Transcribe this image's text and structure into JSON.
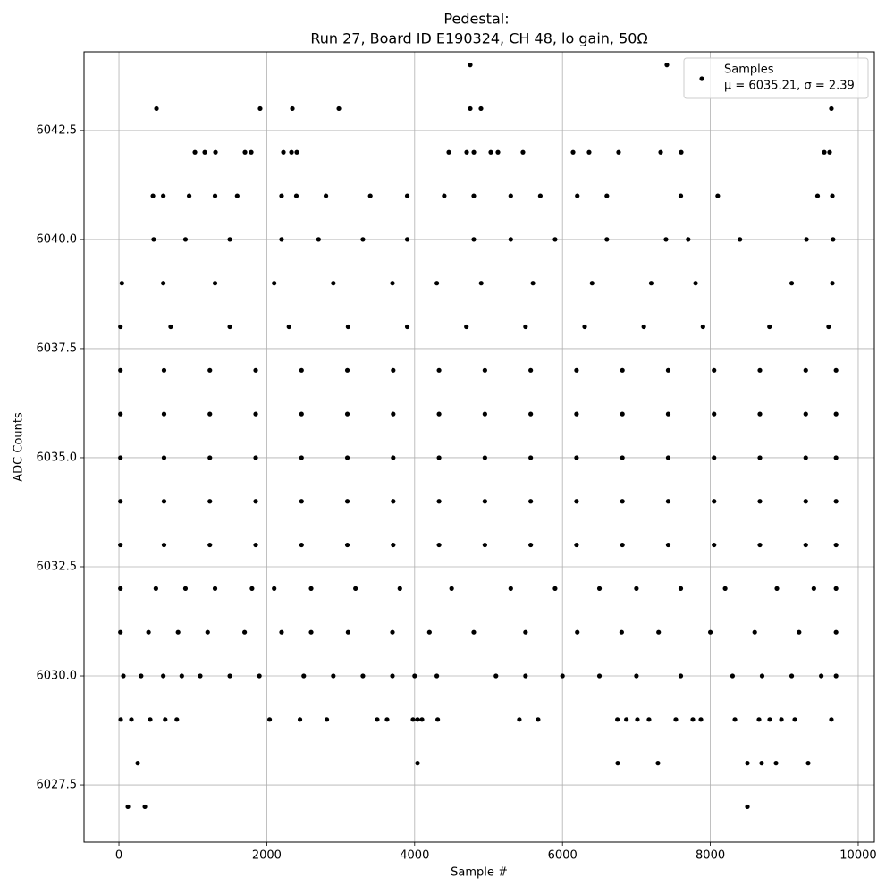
{
  "chart_data": {
    "type": "scatter",
    "title": "Pedestal:",
    "subtitle": "Run 27, Board ID E190324, CH 48, lo gain, 50Ω",
    "x_label": "Sample #",
    "y_label": "ADC Counts",
    "legend_note": "μ = 6035.21, σ = 2.39",
    "legend": "upper right",
    "grid": true,
    "xlim": [
      -472,
      10218
    ],
    "ylim": [
      6026.19,
      6044.3
    ],
    "xticks": [
      0,
      2000,
      4000,
      6000,
      8000,
      10000
    ],
    "yticks": [
      6027.5,
      {
        "value": 6030,
        "label": "6030.0"
      },
      6032.5,
      {
        "value": 6035,
        "label": "6035.0"
      },
      6037.5,
      {
        "value": 6040,
        "label": "6040.0"
      },
      6042.5
    ],
    "series": [
      {
        "name": "Samples",
        "color": "#000000",
        "x": [
          4752,
          7412,
          508,
          1910,
          2346,
          2975,
          4752,
          4897,
          9637,
          1028,
          1161,
          1306,
          1705,
          1790,
          2225,
          2334,
          2406,
          4462,
          4704,
          4801,
          5030,
          5127,
          5465,
          6143,
          6360,
          6759,
          7328,
          7606,
          9541,
          9613,
          460,
          600,
          950,
          1300,
          1600,
          2200,
          2400,
          2800,
          3400,
          3900,
          4400,
          4800,
          5300,
          5700,
          6200,
          6600,
          7600,
          8100,
          9450,
          9650,
          470,
          900,
          1500,
          2200,
          2700,
          3300,
          3900,
          4800,
          5300,
          5900,
          6600,
          7400,
          7700,
          8400,
          9300,
          9660,
          40,
          600,
          1300,
          2100,
          2900,
          3700,
          4300,
          4900,
          5600,
          6400,
          7200,
          7800,
          9100,
          9650,
          20,
          700,
          1500,
          2300,
          3100,
          3900,
          4700,
          5500,
          6300,
          7100,
          7900,
          8800,
          9600,
          20,
          610,
          1230,
          1850,
          2470,
          3090,
          3710,
          4330,
          4950,
          5570,
          6190,
          6810,
          7430,
          8050,
          8670,
          9290,
          9700,
          20,
          610,
          1230,
          1850,
          2470,
          3090,
          3710,
          4330,
          4950,
          5570,
          6190,
          6810,
          7430,
          8050,
          8670,
          9290,
          9700,
          20,
          610,
          1230,
          1850,
          2470,
          3090,
          3710,
          4330,
          4950,
          5570,
          6190,
          6810,
          7430,
          8050,
          8670,
          9290,
          9700,
          20,
          610,
          1230,
          1850,
          2470,
          3090,
          3710,
          4330,
          4950,
          5570,
          6190,
          6810,
          7430,
          8050,
          8670,
          9290,
          9700,
          20,
          610,
          1230,
          1850,
          2470,
          3090,
          3710,
          4330,
          4950,
          5570,
          6190,
          6810,
          7430,
          8050,
          8670,
          9290,
          9700,
          20,
          500,
          900,
          1300,
          1800,
          2100,
          2600,
          3200,
          3800,
          4500,
          5300,
          5900,
          6500,
          7000,
          7600,
          8200,
          8900,
          9400,
          9700,
          20,
          400,
          800,
          1200,
          1700,
          2200,
          2600,
          3100,
          3700,
          4200,
          4800,
          5500,
          6200,
          6800,
          7300,
          8000,
          8600,
          9200,
          9700,
          60,
          300,
          600,
          850,
          1100,
          1500,
          1900,
          2500,
          2900,
          3300,
          3700,
          4000,
          4300,
          5100,
          5500,
          6000,
          6500,
          7000,
          7600,
          8300,
          8700,
          9100,
          9500,
          9700,
          24,
          169,
          423,
          626,
          783,
          2038,
          2449,
          2812,
          3494,
          3627,
          3978,
          4039,
          4099,
          4312,
          5416,
          5670,
          6743,
          6864,
          7013,
          7170,
          7533,
          7763,
          7872,
          8332,
          8658,
          8803,
          8961,
          9142,
          9637,
          254,
          4039,
          6747,
          7291,
          8501,
          8694,
          8888,
          9323,
          121,
          351,
          8501
        ],
        "values": [
          6044,
          6044,
          6043,
          6043,
          6043,
          6043,
          6043,
          6043,
          6043,
          6042,
          6042,
          6042,
          6042,
          6042,
          6042,
          6042,
          6042,
          6042,
          6042,
          6042,
          6042,
          6042,
          6042,
          6042,
          6042,
          6042,
          6042,
          6042,
          6042,
          6042,
          6041,
          6041,
          6041,
          6041,
          6041,
          6041,
          6041,
          6041,
          6041,
          6041,
          6041,
          6041,
          6041,
          6041,
          6041,
          6041,
          6041,
          6041,
          6041,
          6041,
          6040,
          6040,
          6040,
          6040,
          6040,
          6040,
          6040,
          6040,
          6040,
          6040,
          6040,
          6040,
          6040,
          6040,
          6040,
          6040,
          6039,
          6039,
          6039,
          6039,
          6039,
          6039,
          6039,
          6039,
          6039,
          6039,
          6039,
          6039,
          6039,
          6039,
          6038,
          6038,
          6038,
          6038,
          6038,
          6038,
          6038,
          6038,
          6038,
          6038,
          6038,
          6038,
          6038,
          6037,
          6037,
          6037,
          6037,
          6037,
          6037,
          6037,
          6037,
          6037,
          6037,
          6037,
          6037,
          6037,
          6037,
          6037,
          6037,
          6037,
          6036,
          6036,
          6036,
          6036,
          6036,
          6036,
          6036,
          6036,
          6036,
          6036,
          6036,
          6036,
          6036,
          6036,
          6036,
          6036,
          6036,
          6035,
          6035,
          6035,
          6035,
          6035,
          6035,
          6035,
          6035,
          6035,
          6035,
          6035,
          6035,
          6035,
          6035,
          6035,
          6035,
          6035,
          6034,
          6034,
          6034,
          6034,
          6034,
          6034,
          6034,
          6034,
          6034,
          6034,
          6034,
          6034,
          6034,
          6034,
          6034,
          6034,
          6034,
          6033,
          6033,
          6033,
          6033,
          6033,
          6033,
          6033,
          6033,
          6033,
          6033,
          6033,
          6033,
          6033,
          6033,
          6033,
          6033,
          6033,
          6032,
          6032,
          6032,
          6032,
          6032,
          6032,
          6032,
          6032,
          6032,
          6032,
          6032,
          6032,
          6032,
          6032,
          6032,
          6032,
          6032,
          6032,
          6032,
          6031,
          6031,
          6031,
          6031,
          6031,
          6031,
          6031,
          6031,
          6031,
          6031,
          6031,
          6031,
          6031,
          6031,
          6031,
          6031,
          6031,
          6031,
          6031,
          6030,
          6030,
          6030,
          6030,
          6030,
          6030,
          6030,
          6030,
          6030,
          6030,
          6030,
          6030,
          6030,
          6030,
          6030,
          6030,
          6030,
          6030,
          6030,
          6030,
          6030,
          6030,
          6030,
          6030,
          6029,
          6029,
          6029,
          6029,
          6029,
          6029,
          6029,
          6029,
          6029,
          6029,
          6029,
          6029,
          6029,
          6029,
          6029,
          6029,
          6029,
          6029,
          6029,
          6029,
          6029,
          6029,
          6029,
          6029,
          6029,
          6029,
          6029,
          6029,
          6029,
          6028,
          6028,
          6028,
          6028,
          6028,
          6028,
          6028,
          6028,
          6027,
          6027,
          6027
        ]
      }
    ]
  }
}
